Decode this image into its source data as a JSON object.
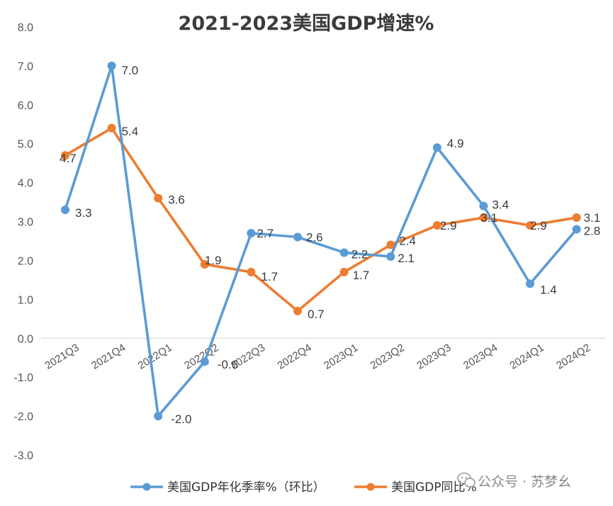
{
  "chart_data": {
    "type": "line",
    "title": "2021-2023美国GDP增速%",
    "categories": [
      "2021Q3",
      "2021Q4",
      "2022Q1",
      "2022Q2",
      "2022Q3",
      "2022Q4",
      "2023Q1",
      "2023Q2",
      "2023Q3",
      "2023Q4",
      "2024Q1",
      "2024Q2"
    ],
    "ylim": [
      -3.0,
      8.0
    ],
    "yticks": [
      "8.0",
      "7.0",
      "6.0",
      "5.0",
      "4.0",
      "3.0",
      "2.0",
      "1.0",
      "0.0",
      "-1.0",
      "-2.0",
      "-3.0"
    ],
    "series": [
      {
        "name": "美国GDP年化季率%（环比）",
        "color": "#5b9bd5",
        "values": [
          3.3,
          7.0,
          -2.0,
          -0.6,
          2.7,
          2.6,
          2.2,
          2.1,
          4.9,
          3.4,
          1.4,
          2.8
        ],
        "labels": [
          "3.3",
          "7.0",
          "-2.0",
          "-0.6",
          "2.7",
          "2.6",
          "2.2",
          "2.1",
          "4.9",
          "3.4",
          "1.4",
          "2.8"
        ]
      },
      {
        "name": "美国GDP同比%",
        "color": "#ed7d31",
        "values": [
          4.7,
          5.4,
          3.6,
          1.9,
          1.7,
          0.7,
          1.7,
          2.4,
          2.9,
          3.1,
          2.9,
          3.1
        ],
        "labels": [
          "4.7",
          "5.4",
          "3.6",
          "1.9",
          "1.7",
          "0.7",
          "1.7",
          "2.4",
          "2.9",
          "3.1",
          "2.9",
          "3.1"
        ]
      }
    ],
    "grid": false,
    "legend": "bottom"
  },
  "watermark": {
    "text": "公众号 · 苏梦幺",
    "icon": "wechat-icon"
  }
}
